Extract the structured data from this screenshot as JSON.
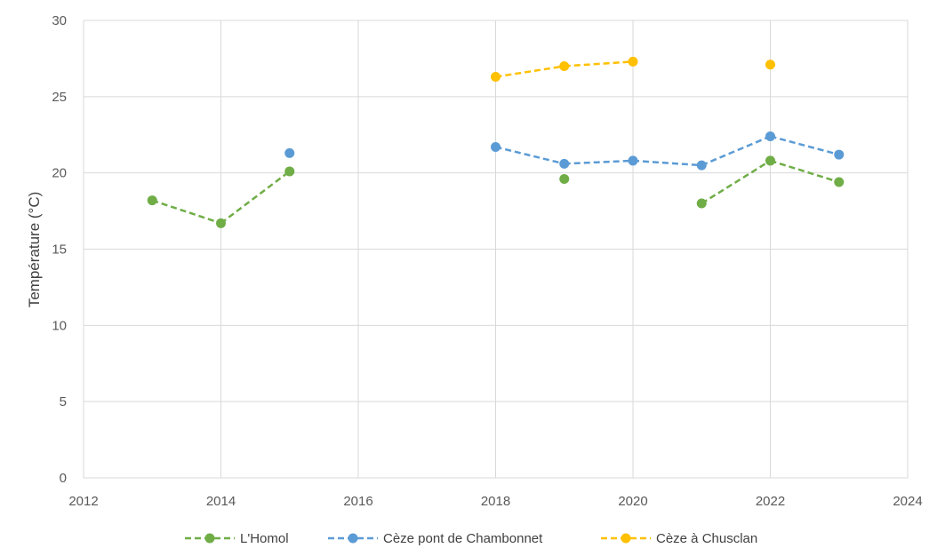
{
  "chart_data": {
    "type": "line",
    "title": "",
    "xlabel": "",
    "ylabel": "Température (°C)",
    "xlim": [
      2012,
      2024
    ],
    "ylim": [
      0,
      30
    ],
    "xticks": [
      2012,
      2014,
      2016,
      2018,
      2020,
      2022,
      2024
    ],
    "yticks": [
      0,
      5,
      10,
      15,
      20,
      25,
      30
    ],
    "grid": true,
    "legend_position": "bottom",
    "line_style": "dashed",
    "series": [
      {
        "name": "L'Homol",
        "color": "#70AD47",
        "points": [
          [
            2013,
            18.2
          ],
          [
            2014,
            16.7
          ],
          [
            2015,
            20.1
          ],
          [
            2016,
            null
          ],
          [
            2017,
            null
          ],
          [
            2018,
            null
          ],
          [
            2019,
            19.6
          ],
          [
            2020,
            null
          ],
          [
            2021,
            18.0
          ],
          [
            2022,
            20.8
          ],
          [
            2023,
            19.4
          ]
        ]
      },
      {
        "name": "Cèze pont de Chambonnet",
        "color": "#5B9BD5",
        "points": [
          [
            2013,
            null
          ],
          [
            2014,
            null
          ],
          [
            2015,
            21.3
          ],
          [
            2016,
            null
          ],
          [
            2017,
            null
          ],
          [
            2018,
            21.7
          ],
          [
            2019,
            20.6
          ],
          [
            2020,
            20.8
          ],
          [
            2021,
            20.5
          ],
          [
            2022,
            22.4
          ],
          [
            2023,
            21.2
          ]
        ]
      },
      {
        "name": "Cèze à Chusclan",
        "color": "#FFC000",
        "points": [
          [
            2013,
            null
          ],
          [
            2014,
            null
          ],
          [
            2015,
            null
          ],
          [
            2016,
            null
          ],
          [
            2017,
            null
          ],
          [
            2018,
            26.3
          ],
          [
            2019,
            27.0
          ],
          [
            2020,
            27.3
          ],
          [
            2021,
            null
          ],
          [
            2022,
            27.1
          ],
          [
            2023,
            null
          ]
        ]
      }
    ]
  }
}
